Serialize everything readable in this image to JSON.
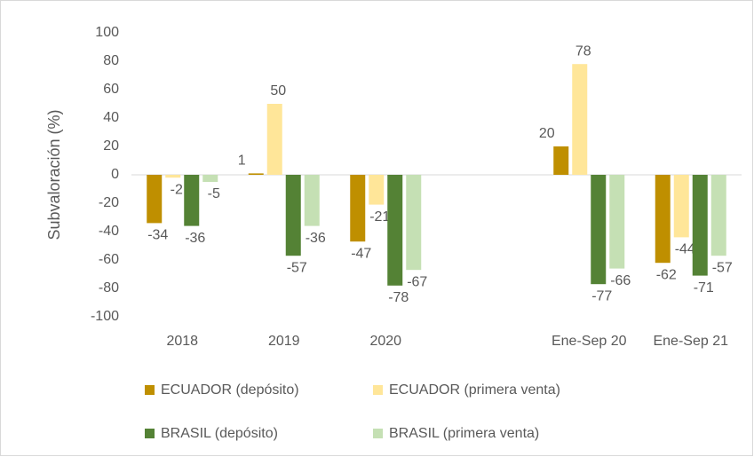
{
  "chart_data": {
    "type": "bar",
    "y_label": "Subvaloración (%)",
    "categories": [
      "2018",
      "2019",
      "2020",
      null,
      "Ene-Sep 20",
      "Ene-Sep 21"
    ],
    "series": [
      {
        "name": "ECUADOR (depósito)",
        "color": "#bf8f00",
        "values": [
          -34,
          1,
          -47,
          null,
          20,
          -62
        ]
      },
      {
        "name": "ECUADOR (primera venta)",
        "color": "#ffe699",
        "values": [
          -2,
          50,
          -21,
          null,
          78,
          -44
        ]
      },
      {
        "name": "BRASIL (depósito)",
        "color": "#548235",
        "values": [
          -36,
          -57,
          -78,
          null,
          -77,
          -71
        ]
      },
      {
        "name": "BRASIL (primera venta)",
        "color": "#c5e0b4",
        "values": [
          -5,
          -36,
          -67,
          null,
          -66,
          -57
        ]
      }
    ],
    "ylim": [
      -100,
      100
    ],
    "yticks": [
      -100,
      -80,
      -60,
      -40,
      -20,
      0,
      20,
      40,
      60,
      80,
      100
    ],
    "grid": false
  }
}
